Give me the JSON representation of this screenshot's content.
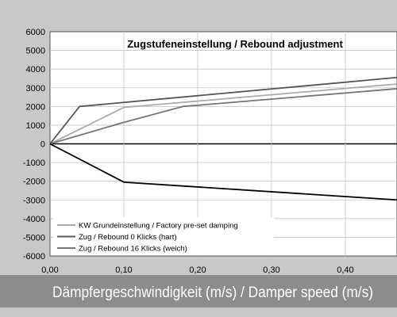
{
  "chart_data": {
    "type": "line",
    "title": "Zugstufeneinstellung / Rebound adjustment",
    "xlabel": "Dämpfergeschwindigkeit (m/s) / Damper speed (m/s)",
    "ylabel": "",
    "xlim": [
      0,
      0.47
    ],
    "ylim": [
      -6000,
      6000
    ],
    "x_ticks": [
      "0,00",
      "0,10",
      "0,20",
      "0,30",
      "0,40"
    ],
    "y_ticks": [
      "6000",
      "5000",
      "4000",
      "3000",
      "2000",
      "1000",
      "0",
      "-1000",
      "-2000",
      "-3000",
      "-4000",
      "-5000",
      "-6000"
    ],
    "grid": true,
    "legend_position": "bottom-left",
    "series": [
      {
        "name": "KW Grundeinstellung / Factory pre-set damping",
        "color": "#aaaaaa",
        "points": [
          [
            0,
            0
          ],
          [
            0.1,
            1950
          ],
          [
            0.47,
            3200
          ]
        ]
      },
      {
        "name": "Zug / Rebound 0 Klicks (hart)",
        "color": "#555555",
        "points": [
          [
            0,
            0
          ],
          [
            0.04,
            2000
          ],
          [
            0.47,
            3550
          ]
        ]
      },
      {
        "name": "Zug / Rebound 16 Klicks (weich)",
        "color": "#777777",
        "points": [
          [
            0,
            0
          ],
          [
            0.1,
            1150
          ],
          [
            0.18,
            2000
          ],
          [
            0.47,
            2950
          ]
        ]
      },
      {
        "name": "",
        "color": "#000000",
        "points": [
          [
            0,
            0
          ],
          [
            0.1,
            -2050
          ],
          [
            0.47,
            -3000
          ]
        ]
      }
    ]
  }
}
